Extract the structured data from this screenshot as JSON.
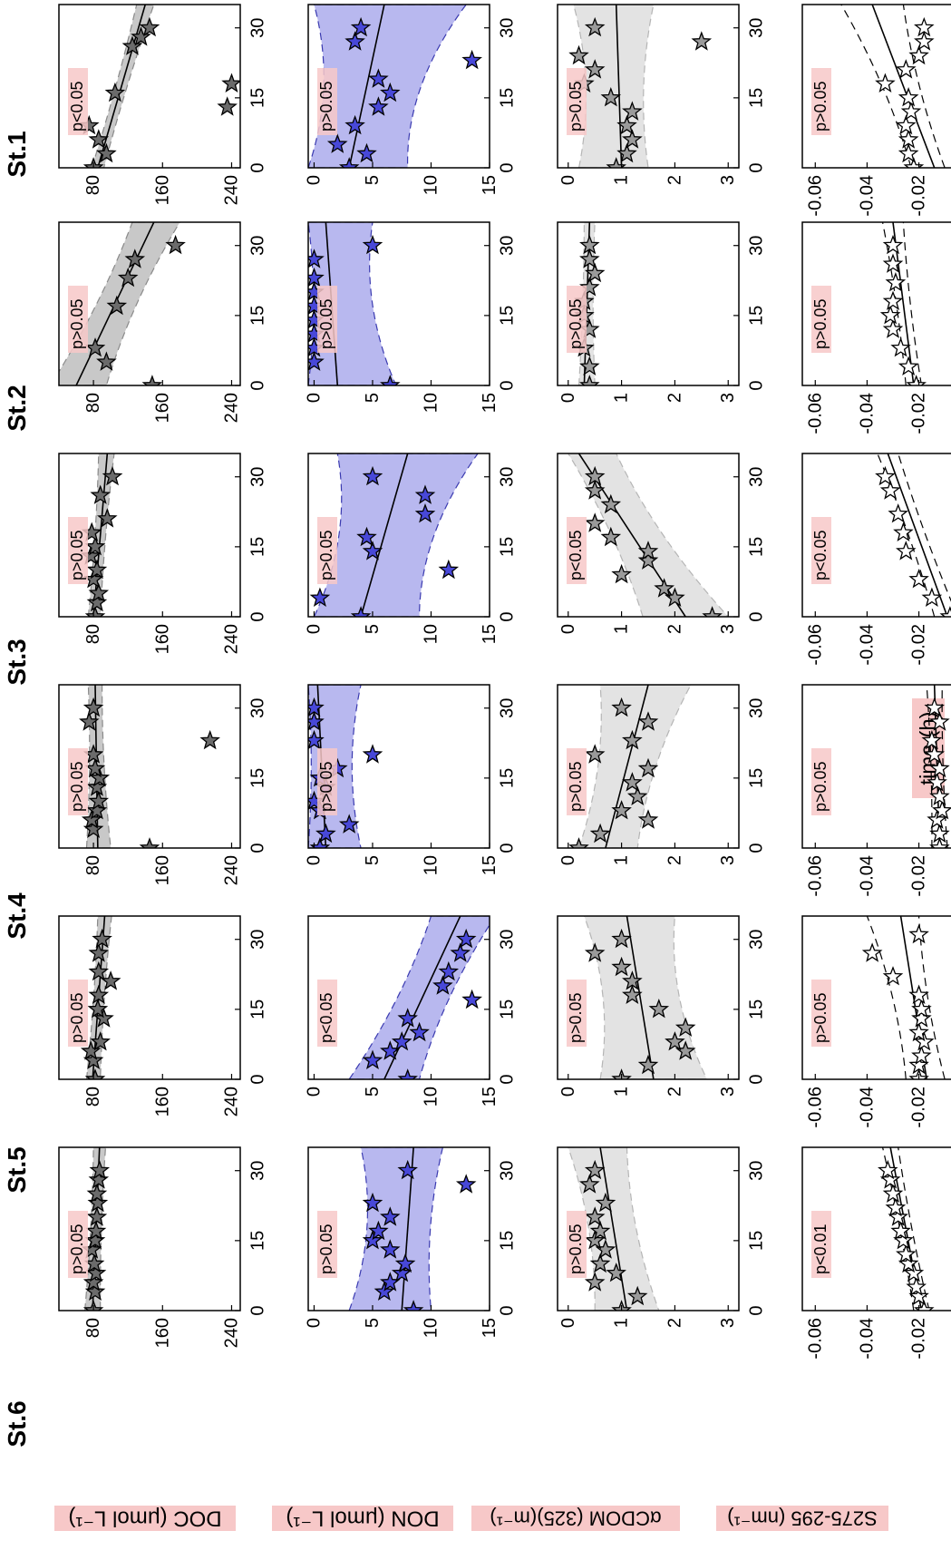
{
  "figure": {
    "stations": [
      "St.6",
      "St.5",
      "St.4",
      "St.3",
      "St.2",
      "St.1"
    ],
    "xlabel": "time (h)",
    "row_labels": {
      "doc": "DOC (μmol L⁻¹)",
      "don": "DON (μmol L⁻¹)",
      "cdom": "αCDOM (325)(m⁻¹)",
      "slope": "S275-295 (nm⁻¹)"
    },
    "colors": {
      "doc_marker": "#6b6b6b",
      "doc_band": "#c8c8c8",
      "don_marker": "#4848d8",
      "don_band": "#b8b8ef",
      "cdom_marker": "#9a9a9a",
      "cdom_band": "#e3e3e3",
      "slope_marker": "#ffffff",
      "label_highlight": "#f7c8c8",
      "tick_highlight": "#6aaff0"
    }
  },
  "chart_data": [
    {
      "type": "scatter",
      "variable": "DOC",
      "ylabel": "DOC (μmol L⁻¹)",
      "xlim": [
        0,
        35
      ],
      "ylim": [
        40,
        250
      ],
      "x_ticks": [
        0,
        15,
        30
      ],
      "y_ticks": [
        80,
        160,
        240
      ],
      "panels": [
        {
          "station": "St.6",
          "p": "p>0.05",
          "x": [
            0,
            4,
            6,
            8,
            10,
            13,
            15,
            17,
            20,
            23,
            25,
            28,
            30
          ],
          "y": [
            80,
            82,
            80,
            83,
            81,
            78,
            82,
            83,
            84,
            85,
            84,
            86,
            87
          ],
          "fit": [
            79,
            87
          ],
          "band_lo": [
            70,
            80
          ],
          "band_hi": [
            88,
            94
          ]
        },
        {
          "station": "St.5",
          "p": "p>0.05",
          "x": [
            0,
            4,
            6,
            8,
            13,
            15,
            18,
            21,
            23,
            27,
            30
          ],
          "y": [
            82,
            80,
            77,
            88,
            92,
            85,
            86,
            100,
            86,
            86,
            90
          ],
          "fit": [
            79,
            93
          ],
          "band_lo": [
            72,
            85
          ],
          "band_hi": [
            88,
            101
          ]
        },
        {
          "station": "St.4",
          "p": "p>0.05",
          "x": [
            0,
            4,
            6,
            8,
            10,
            13,
            15,
            17,
            20,
            23,
            27,
            30
          ],
          "y": [
            145,
            80,
            78,
            84,
            86,
            84,
            87,
            82,
            80,
            215,
            75,
            80
          ],
          "fit": [
            85,
            82
          ],
          "band_lo": [
            72,
            74
          ],
          "band_hi": [
            100,
            90
          ]
        },
        {
          "station": "St.3",
          "p": "p>0.05",
          "x": [
            0,
            3,
            5,
            8,
            10,
            13,
            15,
            18,
            21,
            26,
            30
          ],
          "y": [
            82,
            84,
            86,
            80,
            84,
            77,
            82,
            78,
            96,
            88,
            102
          ],
          "fit": [
            80,
            96
          ],
          "band_lo": [
            74,
            86
          ],
          "band_hi": [
            88,
            104
          ]
        },
        {
          "station": "St.2",
          "p": "p>0.05",
          "x": [
            0,
            5,
            8,
            17,
            23,
            27,
            30
          ],
          "y": [
            148,
            95,
            82,
            107,
            120,
            128,
            175
          ],
          "fit": [
            60,
            150
          ],
          "band_lo": [
            30,
            125
          ],
          "band_hi": [
            95,
            180
          ]
        },
        {
          "station": "St.1",
          "p": "p<0.05",
          "x": [
            0,
            3,
            6,
            9,
            13,
            16,
            18,
            26,
            28,
            30
          ],
          "y": [
            80,
            95,
            86,
            75,
            235,
            105,
            240,
            125,
            135,
            145
          ],
          "fit": [
            85,
            140
          ],
          "band_lo": [
            78,
            130
          ],
          "band_hi": [
            92,
            150
          ]
        }
      ]
    },
    {
      "type": "scatter",
      "variable": "DON",
      "ylabel": "DON (μmol L⁻¹)",
      "xlim": [
        0,
        35
      ],
      "ylim": [
        -0.5,
        15
      ],
      "x_ticks": [
        0,
        15,
        30
      ],
      "y_ticks": [
        0,
        5,
        10,
        15
      ],
      "panels": [
        {
          "station": "St.6",
          "p": "p>0.05",
          "x": [
            0,
            4,
            6,
            8,
            10,
            13,
            15,
            17,
            20,
            23,
            27,
            30
          ],
          "y": [
            8.5,
            6.0,
            6.5,
            7.5,
            7.8,
            6.5,
            5.0,
            5.5,
            6.5,
            5.0,
            13,
            8.0
          ],
          "fit": [
            7.5,
            8.5
          ],
          "band_lo": [
            3,
            4
          ],
          "band_hi": [
            10,
            11
          ]
        },
        {
          "station": "St.5",
          "p": "p<0.05",
          "x": [
            0,
            4,
            6,
            8,
            10,
            13,
            17,
            20,
            23,
            27,
            30
          ],
          "y": [
            8.0,
            5.0,
            6.5,
            7.5,
            9.0,
            8.0,
            13.5,
            11.0,
            11.5,
            12.5,
            13.0
          ],
          "fit": [
            6,
            12.5
          ],
          "band_lo": [
            3,
            10
          ],
          "band_hi": [
            9,
            15.5
          ]
        },
        {
          "station": "St.4",
          "p": "p>0.05",
          "x": [
            0,
            3,
            5,
            8,
            10,
            13,
            15,
            17,
            20,
            23,
            27,
            30
          ],
          "y": [
            0.5,
            1.0,
            3.0,
            0.5,
            0.0,
            1.0,
            0.5,
            2.0,
            5.0,
            0.0,
            0.0,
            0.0
          ],
          "fit": [
            1.0,
            0.3
          ],
          "band_lo": [
            -0.5,
            -0.5
          ],
          "band_hi": [
            4,
            4
          ]
        },
        {
          "station": "St.3",
          "p": "p>0.05",
          "x": [
            0,
            4,
            10,
            14,
            17,
            22,
            26,
            30
          ],
          "y": [
            4.0,
            0.5,
            11.5,
            5.0,
            4.5,
            9.5,
            9.5,
            5.0
          ],
          "fit": [
            4,
            8
          ],
          "band_lo": [
            0,
            2
          ],
          "band_hi": [
            9,
            14
          ]
        },
        {
          "station": "St.2",
          "p": "p>0.05",
          "x": [
            0,
            5,
            8,
            11,
            14,
            17,
            20,
            23,
            27,
            30
          ],
          "y": [
            6.5,
            0.0,
            0.0,
            0.0,
            0.0,
            0.0,
            0.0,
            0.0,
            0.0,
            5.0
          ],
          "fit": [
            2.0,
            1.0
          ],
          "band_lo": [
            -0.5,
            -0.5
          ],
          "band_hi": [
            7,
            5
          ]
        },
        {
          "station": "St.1",
          "p": "p>0.05",
          "x": [
            0,
            3,
            5,
            9,
            13,
            16,
            19,
            23,
            27,
            30
          ],
          "y": [
            3.0,
            4.5,
            2.0,
            3.5,
            5.5,
            6.5,
            5.5,
            13.5,
            3.5,
            4.0
          ],
          "fit": [
            3,
            6
          ],
          "band_lo": [
            -0.5,
            0
          ],
          "band_hi": [
            8,
            13
          ]
        }
      ]
    },
    {
      "type": "scatter",
      "variable": "aCDOM325",
      "ylabel": "αCDOM (325)(m⁻¹)",
      "xlim": [
        0,
        35
      ],
      "ylim": [
        -0.2,
        3.2
      ],
      "x_ticks": [
        0,
        15,
        30
      ],
      "y_ticks": [
        0,
        1,
        2,
        3
      ],
      "panels": [
        {
          "station": "St.6",
          "p": "p>0.05",
          "x": [
            0,
            3,
            6,
            8,
            10,
            13,
            15,
            17,
            20,
            23,
            27,
            30
          ],
          "y": [
            1.0,
            1.3,
            0.5,
            0.9,
            0.6,
            0.7,
            0.5,
            0.6,
            0.5,
            0.7,
            0.4,
            0.5
          ],
          "fit": [
            1.1,
            0.6
          ],
          "band_lo": [
            0.5,
            0.0
          ],
          "band_hi": [
            1.7,
            1.1
          ]
        },
        {
          "station": "St.5",
          "p": "p>0.05",
          "x": [
            0,
            3,
            6,
            8,
            11,
            15,
            18,
            21,
            24,
            27,
            30
          ],
          "y": [
            1.0,
            1.5,
            2.2,
            2.0,
            2.2,
            1.7,
            1.2,
            1.2,
            1.0,
            0.5,
            1.0
          ],
          "fit": [
            1.6,
            1.1
          ],
          "band_lo": [
            0.6,
            0.3
          ],
          "band_hi": [
            2.6,
            2.0
          ]
        },
        {
          "station": "St.4",
          "p": "p>0.05",
          "x": [
            0,
            3,
            6,
            8,
            11,
            14,
            17,
            20,
            23,
            27,
            30
          ],
          "y": [
            0.2,
            0.6,
            1.5,
            1.0,
            1.3,
            1.2,
            1.5,
            0.5,
            1.2,
            1.5,
            1.0
          ],
          "fit": [
            0.7,
            1.5
          ],
          "band_lo": [
            0.2,
            0.6
          ],
          "band_hi": [
            1.3,
            2.3
          ]
        },
        {
          "station": "St.3",
          "p": "p<0.05",
          "x": [
            0,
            4,
            6,
            9,
            12,
            14,
            17,
            20,
            24,
            27,
            30
          ],
          "y": [
            2.7,
            2.0,
            1.8,
            1.0,
            1.5,
            1.5,
            0.8,
            0.5,
            0.8,
            0.5,
            0.5
          ],
          "fit": [
            2.2,
            0.2
          ],
          "band_lo": [
            1.4,
            0.0
          ],
          "band_hi": [
            3.0,
            0.9
          ]
        },
        {
          "station": "St.2",
          "p": "p>0.05",
          "x": [
            0,
            4,
            8,
            12,
            15,
            18,
            21,
            24,
            27,
            30
          ],
          "y": [
            0.4,
            0.4,
            0.3,
            0.4,
            0.3,
            0.3,
            0.4,
            0.5,
            0.4,
            0.4
          ],
          "fit": [
            0.3,
            0.4
          ],
          "band_lo": [
            0.2,
            0.3
          ],
          "band_hi": [
            0.5,
            0.5
          ]
        },
        {
          "station": "St.1",
          "p": "p>0.05",
          "x": [
            0,
            3,
            6,
            9,
            12,
            15,
            18,
            21,
            24,
            27,
            30
          ],
          "y": [
            0.9,
            1.1,
            1.2,
            1.1,
            1.2,
            0.8,
            0.3,
            0.5,
            0.2,
            2.5,
            0.5
          ],
          "fit": [
            1.0,
            0.9
          ],
          "band_lo": [
            0.2,
            0.1
          ],
          "band_hi": [
            1.5,
            1.6
          ]
        }
      ]
    },
    {
      "type": "scatter",
      "variable": "S275_295",
      "ylabel": "S275-295 (nm⁻¹)",
      "xlim": [
        0,
        35
      ],
      "ylim": [
        -0.065,
        0.005
      ],
      "x_ticks": [
        0,
        15,
        30
      ],
      "y_ticks": [
        0,
        -0.02,
        -0.04,
        -0.06
      ],
      "panels": [
        {
          "station": "St.6",
          "p": "p<0.01",
          "x": [
            0,
            3,
            5,
            8,
            10,
            12,
            15,
            17,
            20,
            22,
            25,
            28,
            30
          ],
          "y": [
            -0.018,
            -0.02,
            -0.021,
            -0.022,
            -0.024,
            -0.025,
            -0.026,
            -0.027,
            -0.028,
            -0.029,
            -0.03,
            -0.031,
            -0.032
          ],
          "fit": [
            -0.019,
            -0.031
          ],
          "band_lo": [
            -0.022,
            -0.034
          ],
          "band_hi": [
            -0.016,
            -0.028
          ]
        },
        {
          "station": "St.5",
          "p": "p>0.05",
          "x": [
            0,
            3,
            5,
            8,
            10,
            13,
            15,
            18,
            22,
            27,
            31
          ],
          "y": [
            -0.02,
            -0.02,
            -0.019,
            -0.018,
            -0.02,
            -0.019,
            -0.019,
            -0.02,
            -0.03,
            -0.038,
            -0.02
          ],
          "fit": [
            -0.017,
            -0.027
          ],
          "band_lo": [
            -0.025,
            -0.04
          ],
          "band_hi": [
            -0.01,
            -0.02
          ]
        },
        {
          "station": "St.4",
          "p": "p>0.05",
          "x": [
            0,
            3,
            6,
            8,
            11,
            14,
            17,
            20,
            23,
            27,
            30
          ],
          "y": [
            -0.012,
            -0.012,
            -0.013,
            -0.011,
            -0.012,
            -0.013,
            -0.012,
            -0.014,
            -0.015,
            -0.012,
            -0.014
          ],
          "fit": [
            -0.012,
            -0.014
          ],
          "band_lo": [
            -0.015,
            -0.017
          ],
          "band_hi": [
            -0.009,
            -0.011
          ]
        },
        {
          "station": "St.3",
          "p": "p<0.05",
          "x": [
            0,
            4,
            8,
            14,
            18,
            22,
            27,
            30
          ],
          "y": [
            -0.008,
            -0.015,
            -0.02,
            -0.025,
            -0.026,
            -0.028,
            -0.031,
            -0.033
          ],
          "fit": [
            -0.009,
            -0.032
          ],
          "band_lo": [
            -0.014,
            -0.036
          ],
          "band_hi": [
            -0.005,
            -0.028
          ]
        },
        {
          "station": "St.2",
          "p": "p>0.05",
          "x": [
            0,
            4,
            8,
            12,
            15,
            18,
            22,
            26,
            30
          ],
          "y": [
            -0.021,
            -0.024,
            -0.027,
            -0.03,
            -0.031,
            -0.03,
            -0.029,
            -0.03,
            -0.03
          ],
          "fit": [
            -0.022,
            -0.03
          ],
          "band_lo": [
            -0.025,
            -0.034
          ],
          "band_hi": [
            -0.019,
            -0.026
          ]
        },
        {
          "station": "St.1",
          "p": "p>0.05",
          "x": [
            0,
            3,
            6,
            9,
            12,
            15,
            18,
            21,
            24,
            27,
            30
          ],
          "y": [
            -0.022,
            -0.024,
            -0.024,
            -0.025,
            -0.023,
            -0.024,
            -0.033,
            -0.025,
            -0.02,
            -0.018,
            -0.018
          ],
          "fit": [
            -0.014,
            -0.038
          ],
          "band_lo": [
            -0.023,
            -0.05
          ],
          "band_hi": [
            -0.01,
            -0.026
          ]
        }
      ]
    }
  ]
}
